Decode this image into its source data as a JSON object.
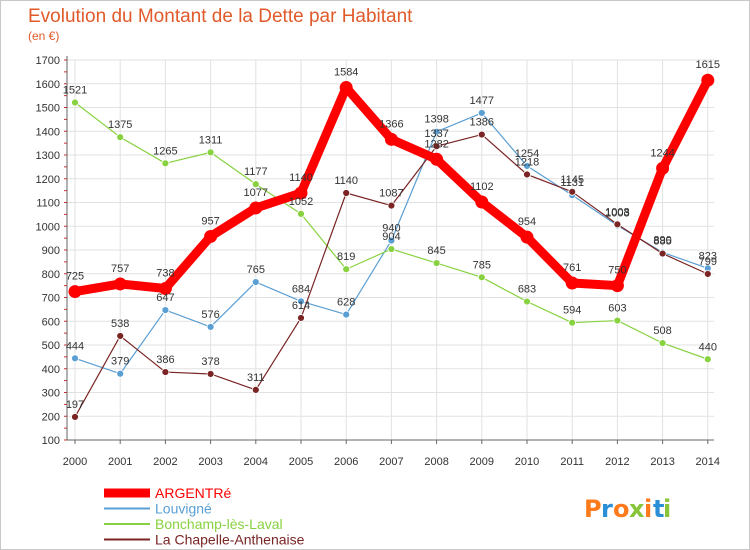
{
  "colors": {
    "title": "#e05a2a",
    "grid": "#e2e2e2",
    "axis": "#666666",
    "series": [
      "#ff0000",
      "#5a9fd4",
      "#88d240",
      "#7a2424"
    ],
    "logo": [
      "#ff7a1a",
      "#2a8fd6",
      "#ff7a1a",
      "#88c53a",
      "#ff7a1a",
      "#2a8fd6",
      "#88c53a"
    ]
  },
  "chart_data": {
    "type": "line",
    "title": "Evolution du Montant de la Dette par Habitant",
    "subtitle": "(en €)",
    "x": [
      "2000",
      "2001",
      "2002",
      "2003",
      "2004",
      "2005",
      "2006",
      "2007",
      "2008",
      "2009",
      "2010",
      "2011",
      "2012",
      "2013",
      "2014"
    ],
    "ylim": [
      100,
      1700
    ],
    "yticks": [
      100,
      200,
      300,
      400,
      500,
      600,
      700,
      800,
      900,
      1000,
      1100,
      1200,
      1300,
      1400,
      1500,
      1600,
      1700
    ],
    "grid": true,
    "legend_position": "bottom-left",
    "series": [
      {
        "name": "ARGENTRé",
        "values": [
          725,
          757,
          738,
          957,
          1077,
          1140,
          1584,
          1366,
          1282,
          1102,
          954,
          761,
          750,
          1244,
          1615
        ]
      },
      {
        "name": "Louvigné",
        "values": [
          444,
          379,
          647,
          576,
          765,
          684,
          628,
          940,
          1398,
          1477,
          1254,
          1131,
          1003,
          890,
          823
        ]
      },
      {
        "name": "Bonchamp-lès-Laval",
        "values": [
          1521,
          1375,
          1265,
          1311,
          1177,
          1052,
          819,
          904,
          845,
          785,
          683,
          594,
          603,
          508,
          440
        ]
      },
      {
        "name": "La Chapelle-Anthenaise",
        "values": [
          197,
          538,
          386,
          378,
          311,
          614,
          1140,
          1087,
          1337,
          1386,
          1218,
          1145,
          1008,
          885,
          799
        ]
      }
    ]
  },
  "logo": {
    "letters": [
      "P",
      "r",
      "o",
      "x",
      "i",
      "t",
      "i"
    ]
  }
}
